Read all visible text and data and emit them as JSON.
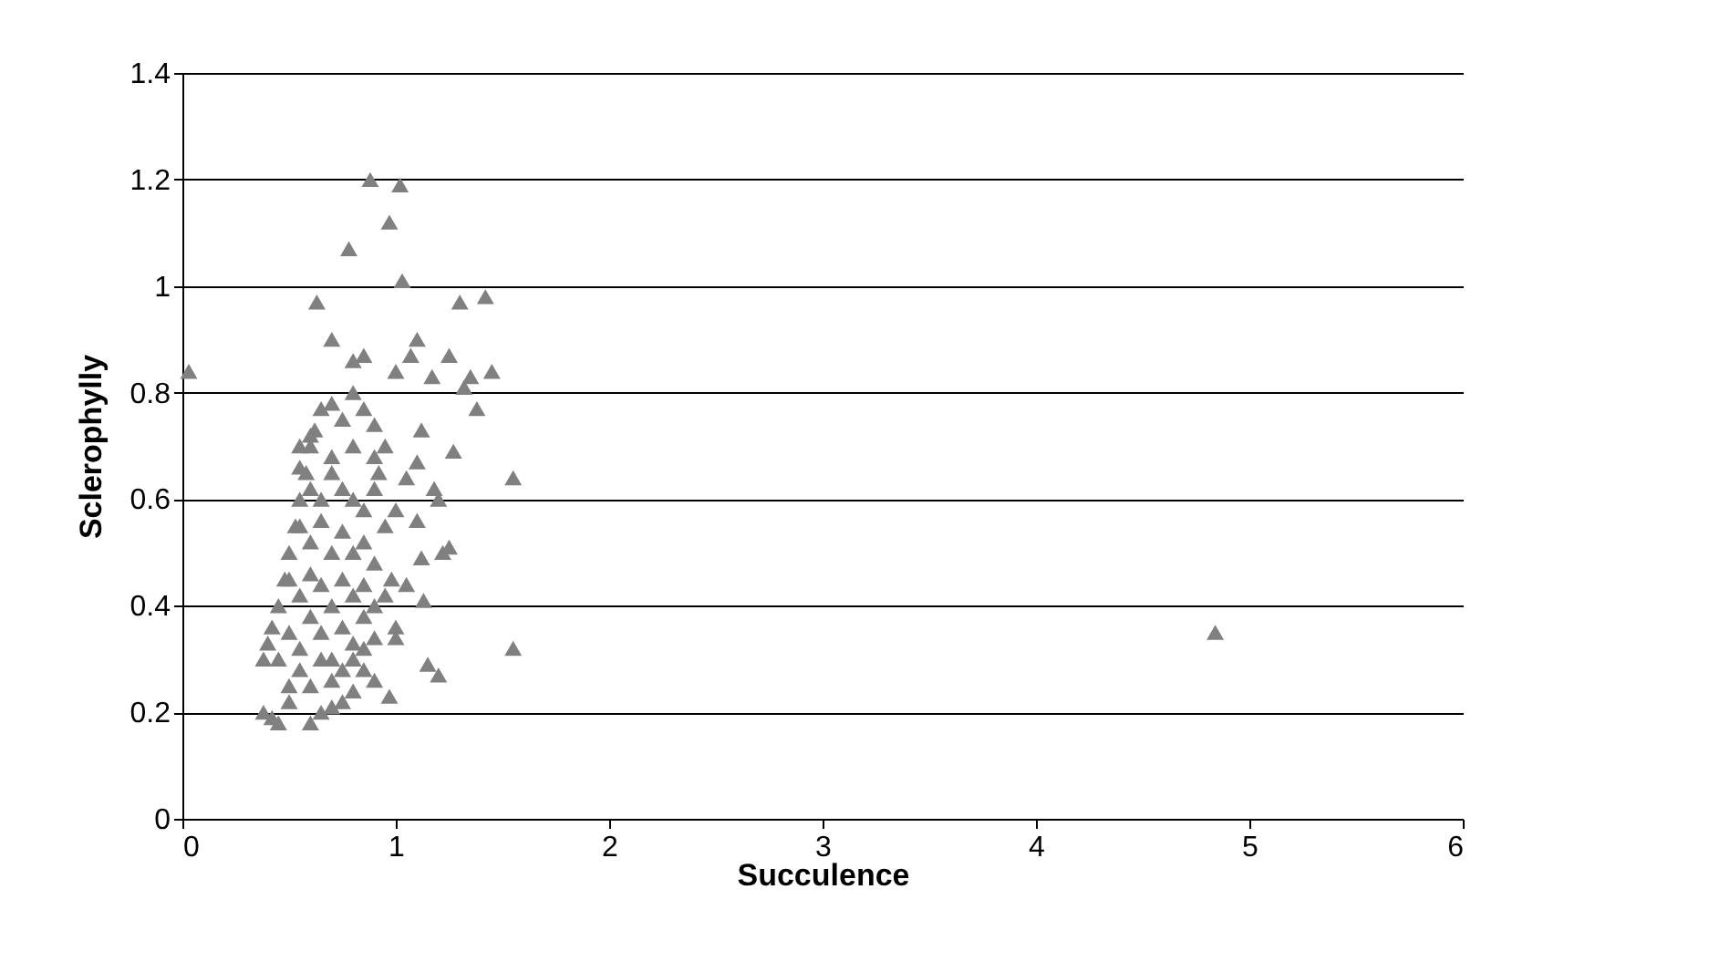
{
  "chart_data": {
    "type": "scatter",
    "xlabel": "Succulence",
    "ylabel": "Sclerophylly",
    "marker": "triangle",
    "grid": "y",
    "xlim": [
      0,
      6
    ],
    "xticks": [
      0,
      1,
      2,
      3,
      4,
      5,
      6
    ],
    "ylim": [
      0,
      1.4
    ],
    "yticks": [
      0,
      0.2,
      0.4,
      0.6,
      0.8,
      1,
      1.2,
      1.4
    ],
    "series": [
      {
        "color": "#808080",
        "x": [
          0.03,
          0.88,
          1.02,
          0.97,
          0.78,
          1.03,
          0.63,
          1.3,
          1.42,
          0.7,
          0.85,
          1.1,
          1.07,
          1.25,
          1.35,
          1.45,
          1.17,
          1.0,
          0.8,
          1.38,
          1.32,
          1.55,
          1.27,
          1.55,
          4.84,
          1.2,
          1.15,
          0.97,
          0.9,
          1.0,
          1.0,
          1.22,
          1.25,
          1.12,
          1.13,
          1.05,
          1.1,
          1.18,
          1.1,
          1.12,
          1.05,
          1.0,
          1.2,
          0.38,
          0.42,
          0.45,
          0.5,
          0.6,
          0.65,
          0.7,
          0.75,
          0.8,
          0.85,
          0.38,
          0.4,
          0.42,
          0.45,
          0.48,
          0.5,
          0.53,
          0.55,
          0.58,
          0.6,
          0.62,
          0.65,
          0.7,
          0.75,
          0.8,
          0.85,
          0.9,
          0.95,
          0.92,
          0.55,
          0.6,
          0.65,
          0.7,
          0.75,
          0.8,
          0.85,
          0.9,
          0.55,
          0.6,
          0.65,
          0.7,
          0.75,
          0.8,
          0.85,
          0.9,
          0.95,
          0.5,
          0.55,
          0.6,
          0.65,
          0.7,
          0.75,
          0.8,
          0.85,
          0.9,
          0.95,
          0.45,
          0.5,
          0.55,
          0.6,
          0.65,
          0.7,
          0.75,
          0.8,
          0.85,
          0.9,
          0.5,
          0.55,
          0.6,
          0.65,
          0.7,
          0.75,
          0.8,
          0.85,
          0.55,
          0.6,
          0.7,
          0.8,
          0.9,
          0.98
        ],
        "values": [
          0.84,
          1.2,
          1.19,
          1.12,
          1.07,
          1.01,
          0.97,
          0.97,
          0.98,
          0.9,
          0.87,
          0.9,
          0.87,
          0.87,
          0.83,
          0.84,
          0.83,
          0.84,
          0.86,
          0.77,
          0.81,
          0.64,
          0.69,
          0.32,
          0.35,
          0.27,
          0.29,
          0.23,
          0.26,
          0.34,
          0.36,
          0.5,
          0.51,
          0.49,
          0.41,
          0.44,
          0.56,
          0.62,
          0.67,
          0.73,
          0.64,
          0.58,
          0.6,
          0.2,
          0.19,
          0.18,
          0.22,
          0.18,
          0.2,
          0.21,
          0.22,
          0.24,
          0.28,
          0.3,
          0.33,
          0.36,
          0.4,
          0.45,
          0.5,
          0.55,
          0.6,
          0.65,
          0.7,
          0.73,
          0.77,
          0.78,
          0.75,
          0.8,
          0.77,
          0.74,
          0.7,
          0.65,
          0.66,
          0.62,
          0.6,
          0.65,
          0.62,
          0.6,
          0.58,
          0.62,
          0.55,
          0.52,
          0.56,
          0.5,
          0.54,
          0.5,
          0.52,
          0.48,
          0.55,
          0.45,
          0.42,
          0.46,
          0.44,
          0.4,
          0.45,
          0.42,
          0.44,
          0.4,
          0.42,
          0.3,
          0.35,
          0.32,
          0.38,
          0.35,
          0.3,
          0.36,
          0.33,
          0.38,
          0.34,
          0.25,
          0.28,
          0.25,
          0.3,
          0.26,
          0.28,
          0.3,
          0.32,
          0.7,
          0.72,
          0.68,
          0.7,
          0.68,
          0.45
        ]
      }
    ]
  }
}
